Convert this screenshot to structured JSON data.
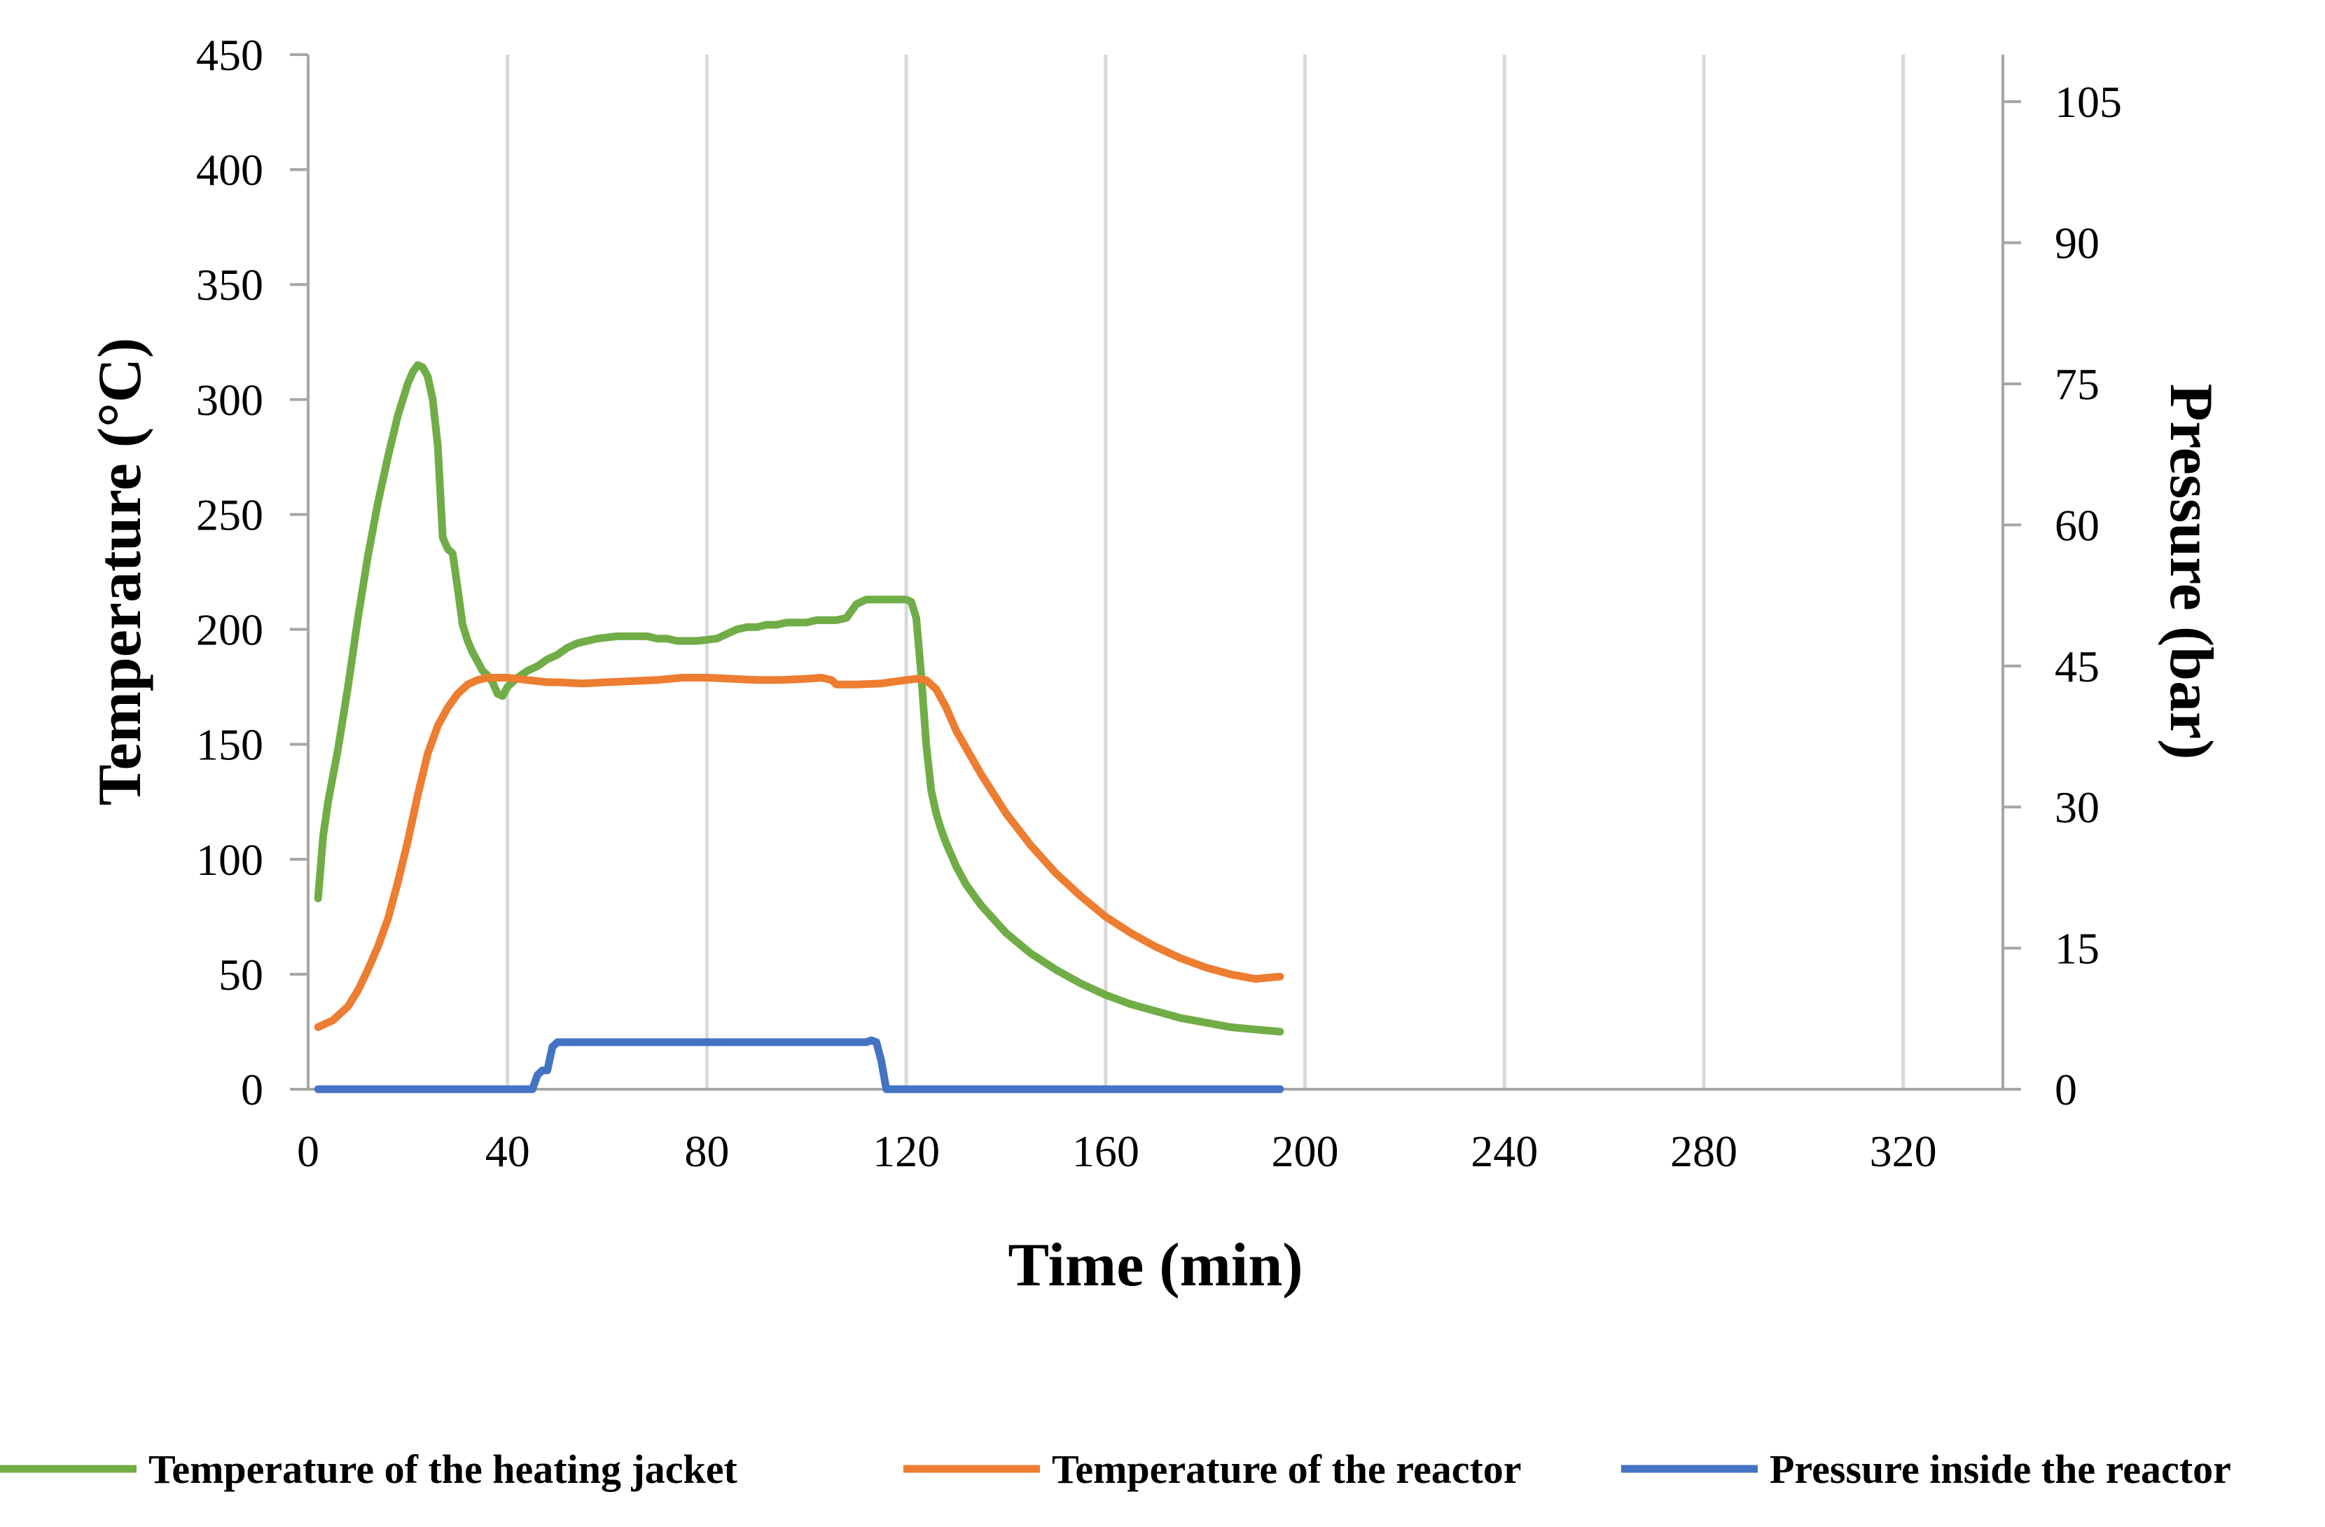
{
  "chart_data": {
    "type": "line",
    "title": "",
    "xlabel": "Time (min)",
    "ylabel": "Temperature (°C)",
    "y2label": "Pressure (bar)",
    "xlim": [
      0,
      340
    ],
    "ylim": [
      0,
      450
    ],
    "y2lim": [
      0,
      110
    ],
    "xticks": [
      0,
      40,
      80,
      120,
      160,
      200,
      240,
      280,
      320
    ],
    "yticks": [
      0,
      50,
      100,
      150,
      200,
      250,
      300,
      350,
      400,
      450
    ],
    "y2ticks": [
      0,
      15,
      30,
      45,
      60,
      75,
      90,
      105
    ],
    "grid": "vertical",
    "legend_position": "bottom",
    "series": [
      {
        "name": "Temperature of the heating jacket",
        "axis": "left",
        "color": "#70AD47",
        "x": [
          2,
          3,
          4,
          6,
          8,
          10,
          12,
          14,
          16,
          18,
          20,
          21,
          22,
          23,
          24,
          25,
          26,
          27,
          28,
          29,
          30,
          31,
          32,
          33,
          34,
          35,
          36,
          37,
          38,
          39,
          40,
          42,
          44,
          46,
          48,
          50,
          52,
          54,
          56,
          58,
          60,
          62,
          64,
          66,
          68,
          70,
          72,
          74,
          76,
          78,
          80,
          82,
          84,
          86,
          88,
          90,
          92,
          94,
          96,
          98,
          100,
          102,
          104,
          106,
          108,
          110,
          112,
          114,
          116,
          118,
          120,
          121,
          122,
          123,
          124,
          125,
          126,
          127,
          128,
          130,
          132,
          135,
          140,
          145,
          150,
          155,
          160,
          165,
          170,
          175,
          180,
          185,
          190,
          195
        ],
        "y": [
          83,
          110,
          125,
          148,
          175,
          205,
          232,
          255,
          275,
          293,
          307,
          312,
          315,
          314,
          310,
          300,
          280,
          240,
          235,
          233,
          218,
          202,
          195,
          190,
          186,
          182,
          180,
          177,
          172,
          171,
          175,
          179,
          182,
          184,
          187,
          189,
          192,
          194,
          195,
          196,
          196.5,
          197,
          197,
          197,
          197,
          196,
          196,
          195,
          195,
          195,
          195.5,
          196,
          198,
          200,
          201,
          201,
          202,
          202,
          203,
          203,
          203,
          204,
          204,
          204,
          205,
          211,
          213,
          213,
          213,
          213,
          213,
          212,
          205,
          180,
          150,
          130,
          120,
          113,
          107,
          97,
          89,
          80,
          68,
          59,
          52,
          46,
          41,
          37,
          34,
          31,
          29,
          27,
          26,
          25
        ]
      },
      {
        "name": "Temperature of the reactor",
        "axis": "left",
        "color": "#ED7D31",
        "x": [
          2,
          5,
          8,
          10,
          12,
          14,
          16,
          18,
          20,
          22,
          24,
          26,
          28,
          30,
          32,
          34,
          36,
          38,
          40,
          42,
          44,
          46,
          48,
          50,
          55,
          60,
          65,
          70,
          75,
          80,
          85,
          90,
          95,
          100,
          103,
          105,
          106,
          108,
          110,
          115,
          120,
          122,
          124,
          126,
          128,
          130,
          135,
          140,
          145,
          150,
          155,
          160,
          165,
          170,
          175,
          180,
          185,
          190,
          195
        ],
        "y": [
          27,
          30,
          36,
          43,
          52,
          62,
          74,
          90,
          108,
          128,
          146,
          158,
          166,
          172,
          176,
          178,
          179,
          179,
          179,
          178.5,
          178,
          177.5,
          177,
          177,
          176.5,
          177,
          177.5,
          178,
          179,
          179,
          178.5,
          178,
          178,
          178.5,
          179,
          178,
          176,
          176,
          176,
          176.5,
          178,
          178.5,
          178,
          174,
          166,
          156,
          137,
          120,
          106,
          94,
          84,
          75,
          68,
          62,
          57,
          53,
          50,
          48,
          49
        ]
      },
      {
        "name": "Pressure inside the reactor",
        "axis": "right",
        "color": "#4472C4",
        "x": [
          2,
          10,
          20,
          30,
          40,
          45,
          46,
          47,
          48,
          49,
          50,
          51,
          52,
          60,
          70,
          80,
          90,
          100,
          110,
          112,
          113,
          114,
          115,
          116,
          117,
          120,
          130,
          140,
          150,
          160,
          170,
          180,
          190,
          195
        ],
        "y": [
          0,
          0,
          0,
          0,
          0,
          0,
          1.5,
          2,
          2,
          4.5,
          5,
          5,
          5,
          5,
          5,
          5,
          5,
          5,
          5,
          5,
          5.2,
          5,
          3,
          0,
          0,
          0,
          0,
          0,
          0,
          0,
          0,
          0,
          0,
          0
        ]
      }
    ]
  }
}
